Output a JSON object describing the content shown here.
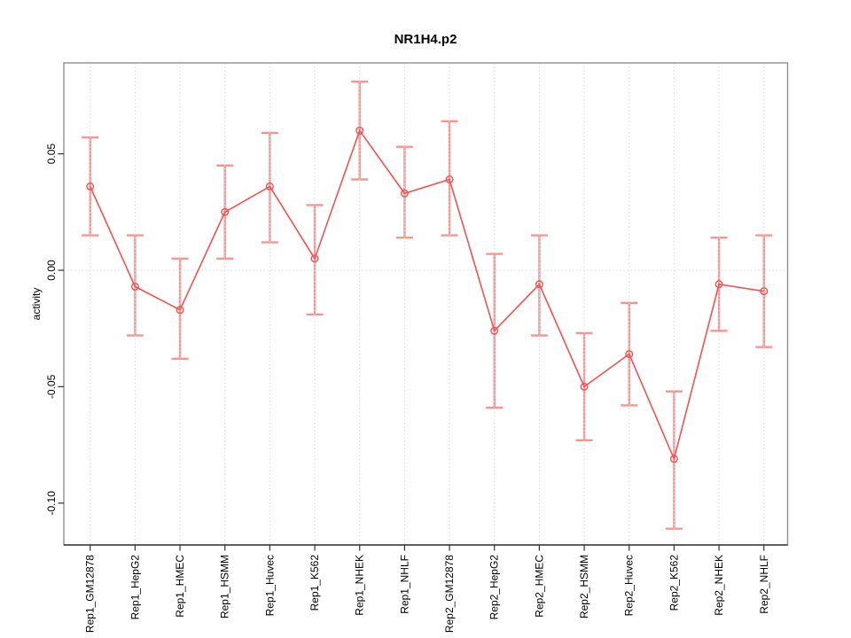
{
  "chart_data": {
    "type": "line",
    "title": "NR1H4.p2",
    "xlabel": "",
    "ylabel": "activity",
    "legend": "none",
    "grid": "dotted vertical line at each category; dotted horizontal line at y=0",
    "categories": [
      "Rep1_GM12878",
      "Rep1_HepG2",
      "Rep1_HMEC",
      "Rep1_HSMM",
      "Rep1_Huvec",
      "Rep1_K562",
      "Rep1_NHEK",
      "Rep1_NHLF",
      "Rep2_GM12878",
      "Rep2_HepG2",
      "Rep2_HMEC",
      "Rep2_HSMM",
      "Rep2_Huvec",
      "Rep2_K562",
      "Rep2_NHEK",
      "Rep2_NHLF"
    ],
    "series": [
      {
        "name": "activity",
        "values": [
          0.036,
          -0.007,
          -0.017,
          0.025,
          0.036,
          0.005,
          0.06,
          0.033,
          0.039,
          -0.026,
          -0.006,
          -0.05,
          -0.036,
          -0.081,
          -0.006,
          -0.009
        ],
        "error_low": [
          0.015,
          -0.028,
          -0.038,
          0.005,
          0.012,
          -0.019,
          0.039,
          0.014,
          0.015,
          -0.059,
          -0.028,
          -0.073,
          -0.058,
          -0.111,
          -0.026,
          -0.033
        ],
        "error_high": [
          0.057,
          0.015,
          0.005,
          0.045,
          0.059,
          0.028,
          0.081,
          0.053,
          0.064,
          0.007,
          0.015,
          -0.027,
          -0.014,
          -0.052,
          0.014,
          0.015
        ]
      }
    ],
    "y_ticks": [
      0.05,
      0.0,
      -0.05,
      -0.1
    ],
    "y_tick_labels": [
      "0.05",
      "0.00",
      "-0.05",
      "-0.10"
    ],
    "ylim": [
      -0.118,
      0.089
    ],
    "colors": {
      "line": "#f25252",
      "point": "#f25252",
      "error_bar": "#f79595",
      "grid": "#d9d9d9",
      "axis_box": "#909090",
      "axis_line": "#1a1a1a",
      "tick": "#333333",
      "text": "#000000",
      "background": "#ffffff"
    }
  }
}
